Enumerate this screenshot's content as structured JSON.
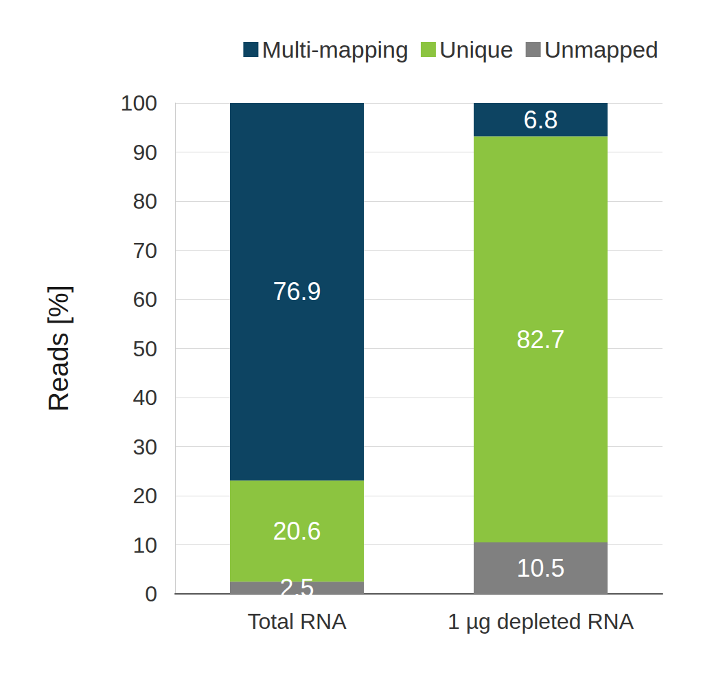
{
  "chart_data": {
    "type": "bar",
    "stacked": true,
    "data_labels": true,
    "grid": true,
    "legend": "top",
    "y_label": "Reads [%]",
    "categories": [
      "Total RNA",
      "1 µg depleted RNA"
    ],
    "series": [
      {
        "name": "Multi-mapping",
        "color": "#0d4462",
        "values": [
          76.9,
          6.8
        ]
      },
      {
        "name": "Unique",
        "color": "#8cc440",
        "values": [
          20.6,
          82.7
        ]
      },
      {
        "name": "Unmapped",
        "color": "#808080",
        "values": [
          2.5,
          10.5
        ]
      }
    ],
    "ylim": [
      0,
      100
    ],
    "yticks": [
      0,
      10,
      20,
      30,
      40,
      50,
      60,
      70,
      80,
      90,
      100
    ]
  }
}
